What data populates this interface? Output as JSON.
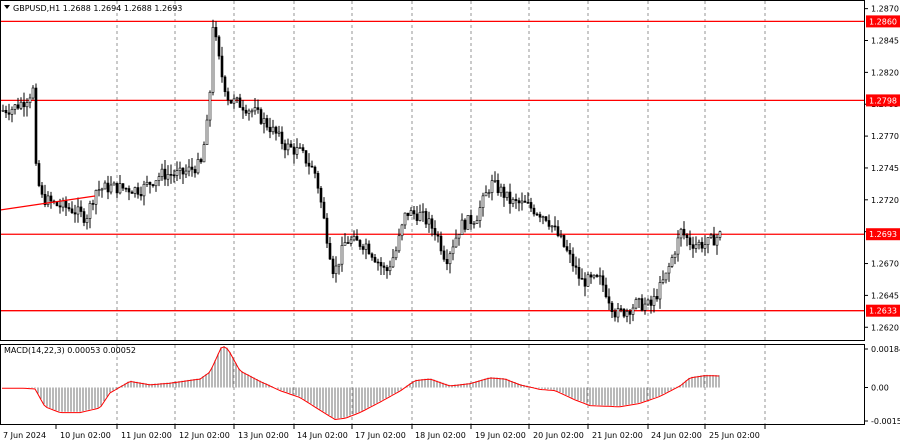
{
  "header": {
    "symbol_line": "GBPUSD,H1  1.2688 1.2694 1.2688 1.2693"
  },
  "macd": {
    "label": "MACD(14,22,3) 0.00053 0.00052",
    "scale": [
      "0.00184",
      "0.00",
      "-0.00158"
    ]
  },
  "colors": {
    "bullish": "#000000",
    "bearish": "#000000",
    "level_line": "#ff0000",
    "signal": "#ff0000",
    "grid": "#7a7a7a"
  },
  "chart_data": [
    {
      "type": "candlestick",
      "title": "GBPUSD,H1",
      "ohlc_current": {
        "open": 1.2688,
        "high": 1.2694,
        "low": 1.2688,
        "close": 1.2693
      },
      "y_tick_labels": [
        "1.2870",
        "1.2845",
        "1.2820",
        "1.2795",
        "1.2770",
        "1.2745",
        "1.2720",
        "1.2695",
        "1.2670",
        "1.2645",
        "1.2620"
      ],
      "ylim": [
        1.261,
        1.2876
      ],
      "x_tick_labels": [
        "7 Jun 2024",
        "10 Jun 02:00",
        "11 Jun 02:00",
        "12 Jun 02:00",
        "13 Jun 02:00",
        "14 Jun 02:00",
        "17 Jun 02:00",
        "18 Jun 02:00",
        "19 Jun 02:00",
        "20 Jun 02:00",
        "21 Jun 02:00",
        "24 Jun 02:00",
        "25 Jun 02:00"
      ],
      "horizontal_levels": [
        "1.2860",
        "1.2798",
        "1.2693",
        "1.2633"
      ],
      "trendline": {
        "x": [
          "7 Jun 2024",
          "10 Jun 02:00"
        ],
        "y": [
          1.2712,
          1.2723
        ]
      },
      "path_x": [
        0,
        12,
        24,
        32,
        34,
        40,
        55,
        70,
        85,
        95,
        110,
        140,
        160,
        180,
        200,
        208,
        212,
        220,
        228,
        240,
        255,
        270,
        285,
        300,
        315,
        325,
        333,
        345,
        365,
        385,
        395,
        405,
        420,
        435,
        445,
        460,
        475,
        490,
        500,
        510,
        525,
        545,
        560,
        570,
        580,
        600,
        615,
        625,
        635,
        650,
        665,
        680,
        690,
        705,
        720
      ],
      "path_y": [
        1.279,
        1.2792,
        1.2798,
        1.2806,
        1.2748,
        1.2722,
        1.2716,
        1.2713,
        1.2706,
        1.2728,
        1.273,
        1.2728,
        1.274,
        1.274,
        1.2748,
        1.2788,
        1.2858,
        1.282,
        1.2798,
        1.2795,
        1.2788,
        1.2776,
        1.2762,
        1.2757,
        1.274,
        1.2695,
        1.2662,
        1.2688,
        1.2685,
        1.2663,
        1.268,
        1.271,
        1.2708,
        1.2695,
        1.2673,
        1.27,
        1.2706,
        1.2733,
        1.2727,
        1.2718,
        1.2716,
        1.2707,
        1.2688,
        1.2673,
        1.2656,
        1.2657,
        1.263,
        1.2633,
        1.2638,
        1.2637,
        1.266,
        1.2695,
        1.2686,
        1.2685,
        1.2693
      ]
    },
    {
      "type": "bar",
      "title": "MACD(14,22,3)",
      "ylim": [
        -0.00158,
        0.00184
      ],
      "signal_name": "",
      "path_x": [
        0,
        25,
        35,
        45,
        60,
        80,
        100,
        110,
        130,
        150,
        170,
        200,
        210,
        222,
        228,
        240,
        260,
        280,
        300,
        320,
        335,
        345,
        360,
        380,
        400,
        415,
        430,
        450,
        470,
        490,
        505,
        520,
        540,
        555,
        575,
        590,
        620,
        640,
        660,
        680,
        690,
        705,
        720
      ],
      "path_y": [
        0.0,
        0.0,
        -3e-05,
        -0.0008,
        -0.00105,
        -0.00105,
        -0.00085,
        -0.0002,
        0.0003,
        0.00015,
        0.00022,
        0.0004,
        0.0007,
        0.00184,
        0.0017,
        0.00075,
        0.0003,
        -0.0001,
        -0.0004,
        -0.00095,
        -0.00135,
        -0.0013,
        -0.00105,
        -0.0006,
        -0.00012,
        0.00033,
        0.0004,
        0.0001,
        0.0002,
        0.00045,
        0.0004,
        0.00015,
        -5e-05,
        -0.0001,
        -0.0005,
        -0.00075,
        -0.0008,
        -0.00065,
        -0.00035,
        0.0001,
        0.00045,
        0.00055,
        0.00053
      ]
    }
  ]
}
